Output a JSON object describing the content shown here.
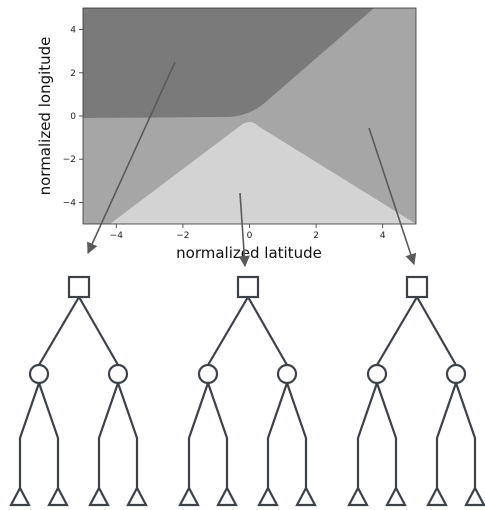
{
  "chart_data": {
    "type": "heatmap",
    "title": "",
    "xlabel": "normalized latitude",
    "ylabel": "normalized longitude",
    "xlim": [
      -5,
      5
    ],
    "ylim": [
      -5,
      5
    ],
    "xticks": [
      -4,
      -2,
      0,
      2,
      4
    ],
    "yticks": [
      4,
      2,
      0,
      -2,
      -4
    ],
    "grid": false,
    "regions": [
      {
        "color": "#7a7a7a",
        "description": "upper-left"
      },
      {
        "color": "#a6a6a6",
        "description": "middle / right"
      },
      {
        "color": "#d3d3d3",
        "description": "bottom center"
      }
    ]
  },
  "trees": {
    "count": 3,
    "root_shape": "square",
    "internal_shape": "circle",
    "leaf_shape": "triangle",
    "edge_color": "#3d4249"
  }
}
